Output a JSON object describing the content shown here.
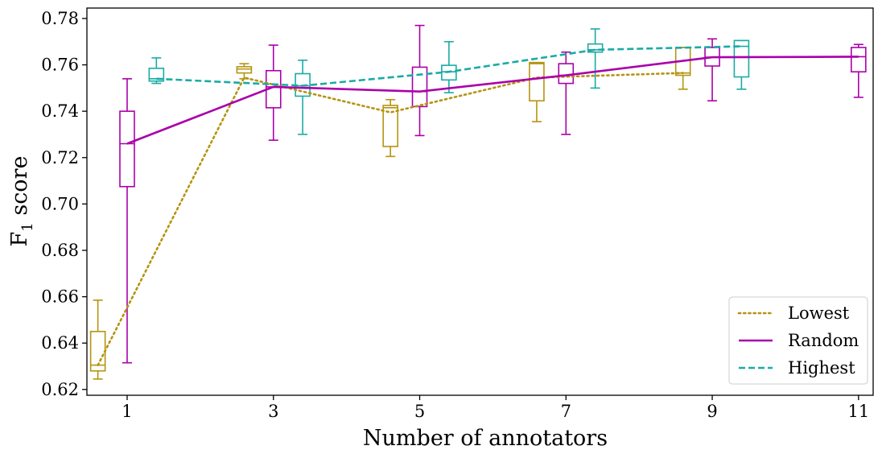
{
  "chart_data": {
    "type": "line",
    "xlabel": "Number of annotators",
    "ylabel_main": "F",
    "ylabel_sub": "1",
    "ylabel_rest": " score",
    "xlim": [
      0.45,
      11.2
    ],
    "ylim": [
      0.6175,
      0.7845
    ],
    "x_ticks": [
      1,
      3,
      5,
      7,
      9,
      11
    ],
    "y_ticks": [
      0.62,
      0.64,
      0.66,
      0.68,
      0.7,
      0.72,
      0.74,
      0.76,
      0.78
    ],
    "y_tick_labels": [
      "0.62",
      "0.64",
      "0.66",
      "0.68",
      "0.70",
      "0.72",
      "0.74",
      "0.76",
      "0.78"
    ],
    "legend_position": "lower-right",
    "series": [
      {
        "name": "Lowest",
        "color": "#b59410",
        "dash": "dotted",
        "x": [
          1,
          3,
          5,
          7,
          9
        ],
        "line": [
          0.6305,
          0.7545,
          0.7395,
          0.7545,
          0.7565
        ],
        "box_offset": -0.4,
        "boxes": [
          {
            "x": 1,
            "min": 0.6245,
            "q1": 0.628,
            "median": 0.6305,
            "q3": 0.645,
            "max": 0.6585
          },
          {
            "x": 3,
            "min": 0.754,
            "q1": 0.7565,
            "median": 0.7582,
            "q3": 0.7592,
            "max": 0.7605
          },
          {
            "x": 5,
            "min": 0.7205,
            "q1": 0.7248,
            "median": 0.7415,
            "q3": 0.7425,
            "max": 0.745
          },
          {
            "x": 7,
            "min": 0.7355,
            "q1": 0.7445,
            "median": 0.7605,
            "q3": 0.761,
            "max": 0.761
          },
          {
            "x": 9,
            "min": 0.7495,
            "q1": 0.7555,
            "median": 0.7565,
            "q3": 0.7675,
            "max": 0.7675
          }
        ]
      },
      {
        "name": "Random",
        "color": "#aa00aa",
        "dash": "solid",
        "x": [
          1,
          3,
          5,
          7,
          9,
          11
        ],
        "line": [
          0.726,
          0.7505,
          0.7485,
          0.7555,
          0.7633,
          0.7635
        ],
        "box_offset": 0,
        "boxes": [
          {
            "x": 1,
            "min": 0.6315,
            "q1": 0.7075,
            "median": 0.726,
            "q3": 0.74,
            "max": 0.754
          },
          {
            "x": 3,
            "min": 0.7275,
            "q1": 0.7415,
            "median": 0.7505,
            "q3": 0.7575,
            "max": 0.7685
          },
          {
            "x": 5,
            "min": 0.7295,
            "q1": 0.742,
            "median": 0.7485,
            "q3": 0.759,
            "max": 0.777
          },
          {
            "x": 7,
            "min": 0.73,
            "q1": 0.752,
            "median": 0.7555,
            "q3": 0.7605,
            "max": 0.7655
          },
          {
            "x": 9,
            "min": 0.7445,
            "q1": 0.7595,
            "median": 0.7633,
            "q3": 0.7675,
            "max": 0.7712
          },
          {
            "x": 11,
            "min": 0.746,
            "q1": 0.757,
            "median": 0.7635,
            "q3": 0.7675,
            "max": 0.7688
          }
        ]
      },
      {
        "name": "Highest",
        "color": "#1aaba5",
        "dash": "dashed",
        "x": [
          1,
          3,
          5,
          7,
          9
        ],
        "line": [
          0.754,
          0.751,
          0.757,
          0.7665,
          0.768
        ],
        "box_offset": 0.4,
        "boxes": [
          {
            "x": 1,
            "min": 0.752,
            "q1": 0.753,
            "median": 0.754,
            "q3": 0.7585,
            "max": 0.763
          },
          {
            "x": 3,
            "min": 0.73,
            "q1": 0.7465,
            "median": 0.751,
            "q3": 0.7562,
            "max": 0.762
          },
          {
            "x": 5,
            "min": 0.748,
            "q1": 0.7535,
            "median": 0.757,
            "q3": 0.7598,
            "max": 0.77
          },
          {
            "x": 7,
            "min": 0.75,
            "q1": 0.7655,
            "median": 0.7665,
            "q3": 0.769,
            "max": 0.7755
          },
          {
            "x": 9,
            "min": 0.7495,
            "q1": 0.7548,
            "median": 0.768,
            "q3": 0.7705,
            "max": 0.7705
          }
        ]
      }
    ]
  }
}
